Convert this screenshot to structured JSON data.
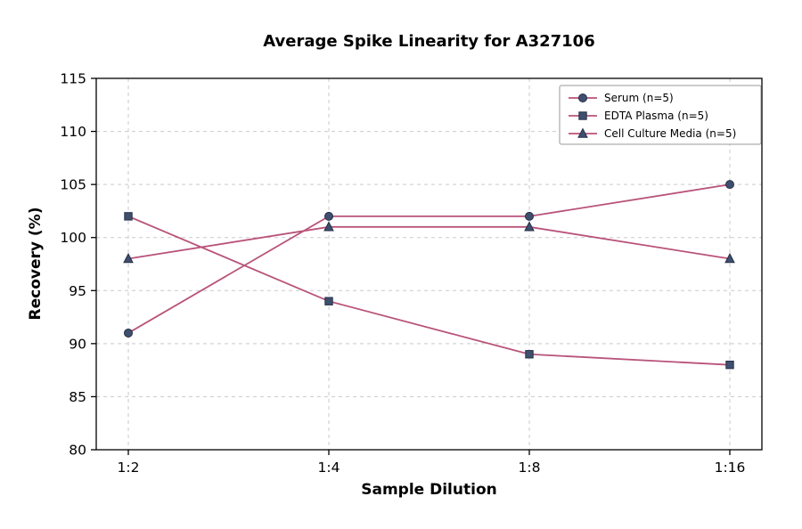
{
  "chart": {
    "title": "Average Spike Linearity for A327106",
    "xlabel": "Sample Dilution",
    "ylabel": "Recovery (%)"
  },
  "chart_data": {
    "type": "line",
    "title": "Average Spike Linearity for A327106",
    "xlabel": "Sample Dilution",
    "ylabel": "Recovery (%)",
    "categories": [
      "1:2",
      "1:4",
      "1:8",
      "1:16"
    ],
    "series": [
      {
        "name": "Serum (n=5)",
        "marker": "circle",
        "values": [
          91,
          102,
          102,
          105
        ]
      },
      {
        "name": "EDTA Plasma (n=5)",
        "marker": "square",
        "values": [
          102,
          94,
          89,
          88
        ]
      },
      {
        "name": "Cell Culture Media (n=5)",
        "marker": "triangle",
        "values": [
          98,
          101,
          101,
          98
        ]
      }
    ],
    "ylim": [
      80,
      115
    ],
    "yticks": [
      80,
      85,
      90,
      95,
      100,
      105,
      110,
      115
    ],
    "grid": true,
    "grid_style": "dashed",
    "legend_position": "upper right",
    "line_color": "#b9537a",
    "marker_fill": "#3f4f6e",
    "marker_edge": "#252f47",
    "axis_color": "#000000",
    "grid_color": "#c9c9c9"
  }
}
